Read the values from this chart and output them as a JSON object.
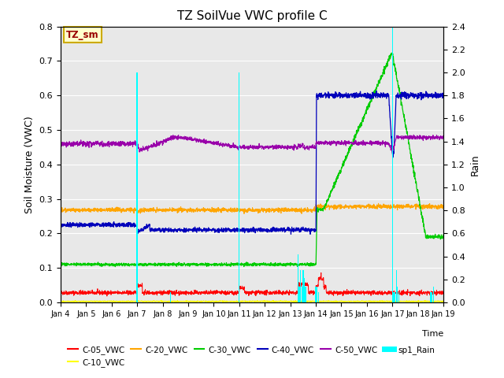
{
  "title": "TZ SoilVue VWC profile C",
  "ylabel_left": "Soil Moisture (VWC)",
  "ylabel_right": "Rain",
  "ylim_left": [
    0.0,
    0.8
  ],
  "ylim_right": [
    0.0,
    2.4
  ],
  "bg_color": "#E8E8E8",
  "annotation_box": "TZ_sm",
  "annotation_box_facecolor": "#FFFFCC",
  "annotation_box_edgecolor": "#CCAA00",
  "annotation_text_color": "#990000",
  "colors": {
    "C-05_VWC": "#FF0000",
    "C-10_VWC": "#FFFF00",
    "C-20_VWC": "#FFA500",
    "C-30_VWC": "#00CC00",
    "C-40_VWC": "#0000BB",
    "C-50_VWC": "#9900AA",
    "sp1_Rain": "#00FFFF"
  },
  "tick_labels": [
    "Jan 4",
    "Jan 5",
    "Jan 6",
    "Jan 7",
    "Jan 8",
    "Jan 9",
    "Jan 10",
    "Jan 11",
    "Jan 12",
    "Jan 13",
    "Jan 14",
    "Jan 15",
    "Jan 16",
    "Jan 17",
    "Jan 18",
    "Jan 19"
  ],
  "yticks_left": [
    0.0,
    0.1,
    0.2,
    0.3,
    0.4,
    0.5,
    0.6,
    0.7,
    0.8
  ],
  "yticks_right": [
    0.0,
    0.2,
    0.4,
    0.6,
    0.8,
    1.0,
    1.2,
    1.4,
    1.6,
    1.8,
    2.0,
    2.2,
    2.4
  ]
}
